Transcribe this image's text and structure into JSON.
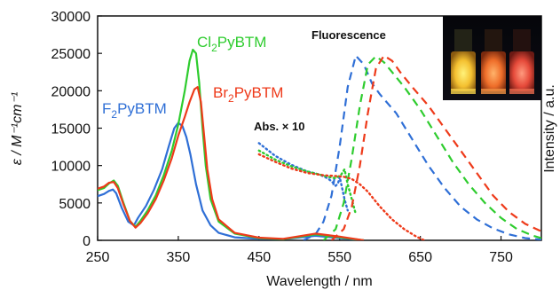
{
  "chart_data": {
    "type": "line",
    "xlabel": "Wavelength / nm",
    "ylabel": "ε / M⁻¹cm⁻¹",
    "ylabel_right": "Intensity / a.u.",
    "xlim": [
      250,
      800
    ],
    "ylim": [
      0,
      30000
    ],
    "x_ticks": [
      "250",
      "350",
      "450",
      "550",
      "650",
      "750"
    ],
    "y_ticks": [
      "0",
      "5000",
      "10000",
      "15000",
      "20000",
      "25000",
      "30000"
    ],
    "annotations": [
      "Fluorescence",
      "Abs. × 10"
    ],
    "series": [
      {
        "name": "F2PyBTM",
        "name_base": "F",
        "name_sub": "2",
        "name_tail": "PyBTM",
        "color": "#2f6fd6",
        "absorption": {
          "x": [
            250,
            258,
            264,
            269,
            273,
            280,
            288,
            295,
            300,
            310,
            320,
            330,
            338,
            345,
            350,
            355,
            360,
            365,
            372,
            380,
            390,
            400,
            420,
            450,
            480,
            520,
            550,
            580
          ],
          "y": [
            5900,
            6200,
            6600,
            6800,
            6300,
            4300,
            2500,
            2000,
            3000,
            4600,
            6800,
            9500,
            12500,
            15000,
            15700,
            15300,
            13800,
            11500,
            7500,
            4000,
            2000,
            1000,
            400,
            200,
            150,
            600,
            300,
            0
          ]
        },
        "abs_x10": {
          "x": [
            450,
            470,
            490,
            510,
            525,
            535,
            540,
            545,
            548,
            550,
            553,
            556,
            560
          ],
          "y": [
            13000,
            11300,
            10100,
            9200,
            8800,
            8300,
            7900,
            7300,
            7600,
            8500,
            7000,
            5500,
            4000
          ]
        },
        "fluorescence": {
          "x": [
            505,
            520,
            530,
            540,
            550,
            560,
            570,
            580,
            590,
            600,
            620,
            640,
            660,
            680,
            700,
            720,
            740,
            760,
            780,
            800
          ],
          "y": [
            0,
            800,
            2500,
            6000,
            12500,
            20500,
            24700,
            23500,
            21000,
            19500,
            17000,
            13500,
            10000,
            7000,
            4500,
            2800,
            1600,
            800,
            300,
            100
          ]
        }
      },
      {
        "name": "Cl2PyBTM",
        "name_base": "Cl",
        "name_sub": "2",
        "name_tail": "PyBTM",
        "color": "#2ecc2e",
        "absorption": {
          "x": [
            250,
            258,
            264,
            270,
            275,
            282,
            290,
            297,
            303,
            312,
            322,
            332,
            342,
            350,
            358,
            364,
            368,
            372,
            376,
            380,
            384,
            390,
            400,
            420,
            450,
            480,
            520,
            550,
            580
          ],
          "y": [
            6700,
            7000,
            7600,
            8000,
            7300,
            5000,
            2600,
            1800,
            2600,
            4000,
            6000,
            8700,
            12000,
            15500,
            20000,
            24000,
            25500,
            25000,
            21000,
            15000,
            10000,
            5500,
            2500,
            900,
            300,
            150,
            800,
            400,
            0
          ]
        },
        "abs_x10": {
          "x": [
            450,
            470,
            490,
            510,
            525,
            535,
            545,
            552,
            556,
            560,
            565,
            570
          ],
          "y": [
            12000,
            10800,
            9900,
            9200,
            8800,
            8500,
            8300,
            8800,
            9500,
            7500,
            5500,
            3500
          ]
        },
        "fluorescence": {
          "x": [
            530,
            545,
            555,
            565,
            575,
            585,
            595,
            605,
            615,
            630,
            650,
            670,
            690,
            710,
            730,
            750,
            770,
            790,
            800
          ],
          "y": [
            0,
            1500,
            5000,
            11000,
            18000,
            23500,
            24600,
            23800,
            22500,
            20500,
            17500,
            14000,
            10500,
            7500,
            5000,
            3000,
            1500,
            600,
            300
          ]
        }
      },
      {
        "name": "Br2PyBTM",
        "name_base": "Br",
        "name_sub": "2",
        "name_tail": "PyBTM",
        "color": "#ee3a1a",
        "absorption": {
          "x": [
            250,
            258,
            264,
            270,
            275,
            282,
            290,
            297,
            303,
            312,
            322,
            332,
            342,
            350,
            358,
            364,
            370,
            374,
            378,
            382,
            386,
            392,
            400,
            420,
            450,
            480,
            520,
            550,
            580
          ],
          "y": [
            6900,
            7200,
            7700,
            7800,
            7000,
            4800,
            2600,
            1700,
            2300,
            3600,
            5500,
            8000,
            11000,
            14000,
            16500,
            18500,
            20200,
            20500,
            18500,
            14000,
            9500,
            5500,
            2800,
            1000,
            350,
            200,
            900,
            500,
            0
          ]
        },
        "abs_x10": {
          "x": [
            450,
            470,
            490,
            510,
            530,
            545,
            555,
            565,
            575,
            585,
            600,
            615,
            630,
            645,
            655
          ],
          "y": [
            11500,
            10500,
            9600,
            9000,
            8700,
            8600,
            8500,
            8200,
            7500,
            6500,
            4500,
            2800,
            1500,
            500,
            0
          ]
        },
        "fluorescence": {
          "x": [
            540,
            555,
            565,
            575,
            585,
            595,
            605,
            615,
            625,
            640,
            660,
            680,
            700,
            720,
            740,
            760,
            780,
            800
          ],
          "y": [
            0,
            1500,
            4500,
            10000,
            17000,
            23000,
            24700,
            24000,
            22500,
            20500,
            18000,
            15000,
            12000,
            9000,
            6000,
            3800,
            2200,
            1200
          ]
        }
      }
    ]
  }
}
